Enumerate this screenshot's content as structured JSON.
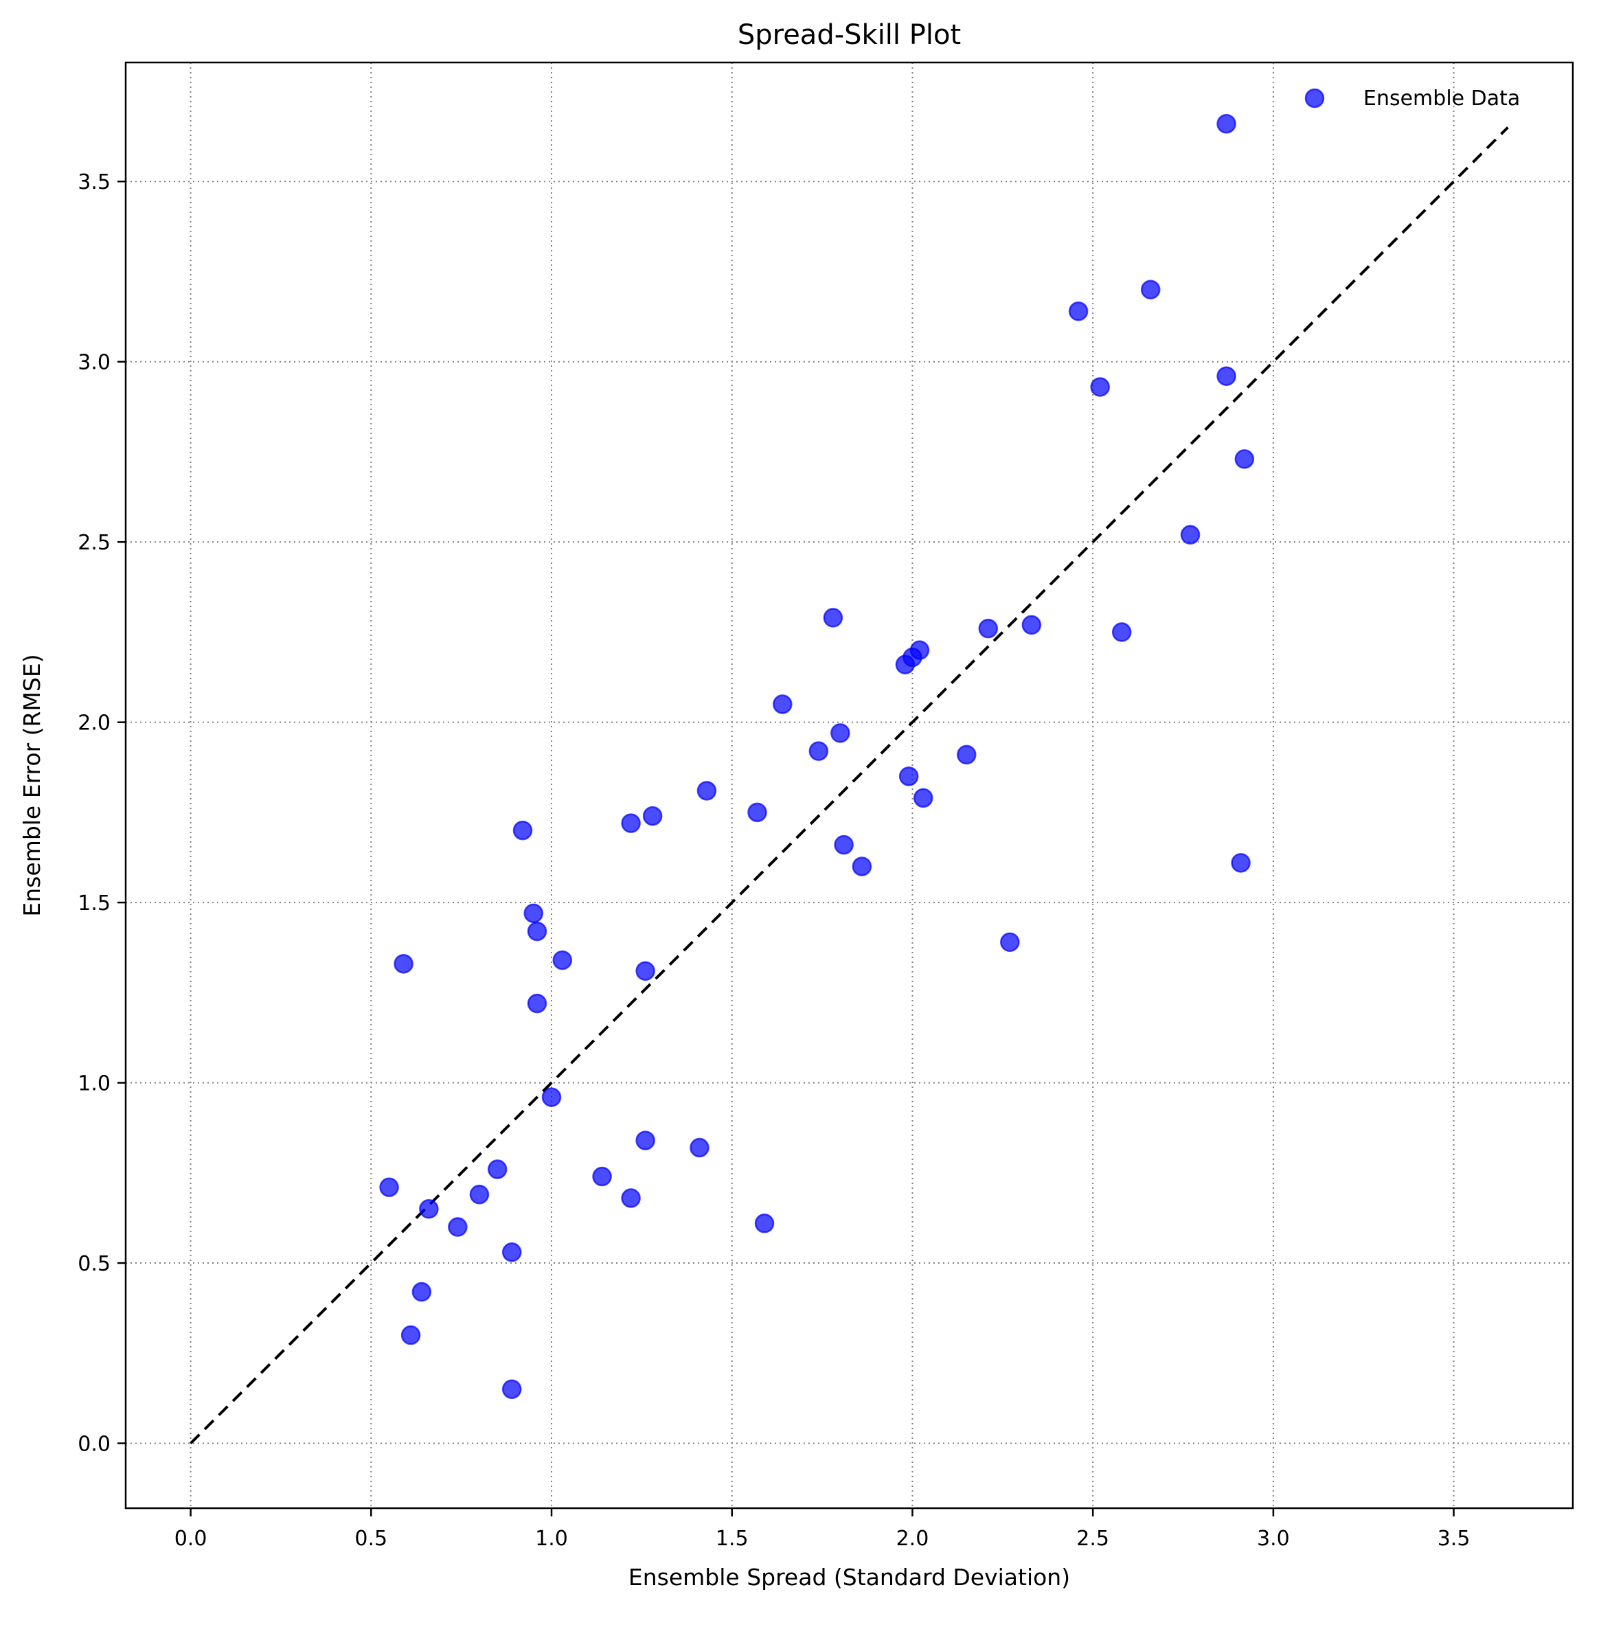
{
  "chart_data": {
    "type": "scatter",
    "title": "Spread-Skill Plot",
    "xlabel": "Ensemble Spread (Standard Deviation)",
    "ylabel": "Ensemble Error (RMSE)",
    "xlim": [
      -0.18,
      3.83
    ],
    "ylim": [
      -0.18,
      3.83
    ],
    "xticks": [
      0.0,
      0.5,
      1.0,
      1.5,
      2.0,
      2.5,
      3.0,
      3.5
    ],
    "xtick_labels": [
      "0.0",
      "0.5",
      "1.0",
      "1.5",
      "2.0",
      "2.5",
      "3.0",
      "3.5"
    ],
    "yticks": [
      0.0,
      0.5,
      1.0,
      1.5,
      2.0,
      2.5,
      3.0,
      3.5
    ],
    "ytick_labels": [
      "0.0",
      "0.5",
      "1.0",
      "1.5",
      "2.0",
      "2.5",
      "3.0",
      "3.5"
    ],
    "grid": true,
    "grid_style": "dotted",
    "legend_position": "upper right",
    "legend": [
      "Ensemble Data"
    ],
    "reference_line": {
      "x": [
        0.0,
        3.65
      ],
      "y": [
        0.0,
        3.65
      ],
      "style": "dashed",
      "color": "#000000"
    },
    "series": [
      {
        "name": "Ensemble Data",
        "color": "#0000ff",
        "alpha": 0.7,
        "x": [
          2.87,
          2.66,
          2.46,
          2.52,
          2.87,
          2.92,
          2.77,
          1.78,
          2.21,
          2.33,
          2.58,
          2.02,
          2.0,
          1.98,
          1.64,
          1.8,
          1.74,
          2.15,
          1.99,
          2.03,
          1.43,
          1.57,
          1.28,
          1.22,
          0.92,
          1.81,
          1.86,
          2.91,
          0.95,
          0.96,
          2.27,
          1.03,
          0.59,
          1.26,
          0.96,
          1.0,
          1.26,
          1.41,
          1.14,
          0.85,
          0.55,
          0.8,
          1.22,
          0.66,
          0.74,
          1.59,
          0.89,
          0.64,
          0.61,
          0.89
        ],
        "y": [
          3.66,
          3.2,
          3.14,
          2.93,
          2.96,
          2.73,
          2.52,
          2.29,
          2.26,
          2.27,
          2.25,
          2.2,
          2.18,
          2.16,
          2.05,
          1.97,
          1.92,
          1.91,
          1.85,
          1.79,
          1.81,
          1.75,
          1.74,
          1.72,
          1.7,
          1.66,
          1.6,
          1.61,
          1.47,
          1.42,
          1.39,
          1.34,
          1.33,
          1.31,
          1.22,
          0.96,
          0.84,
          0.82,
          0.74,
          0.76,
          0.71,
          0.69,
          0.68,
          0.65,
          0.6,
          0.61,
          0.53,
          0.42,
          0.3,
          0.15
        ]
      }
    ]
  }
}
